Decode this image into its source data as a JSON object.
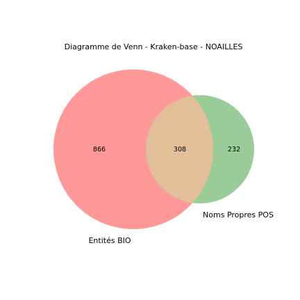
{
  "title": "Diagramme de Venn - Kraken-base - NOAILLES",
  "sets": [
    {
      "name": "Entités BIO",
      "only_count": "866",
      "color": "#ff9999"
    },
    {
      "name": "Noms Propres POS",
      "only_count": "232",
      "color": "#99cc99"
    }
  ],
  "intersection": {
    "count": "308",
    "color": "#e0bf99"
  }
}
